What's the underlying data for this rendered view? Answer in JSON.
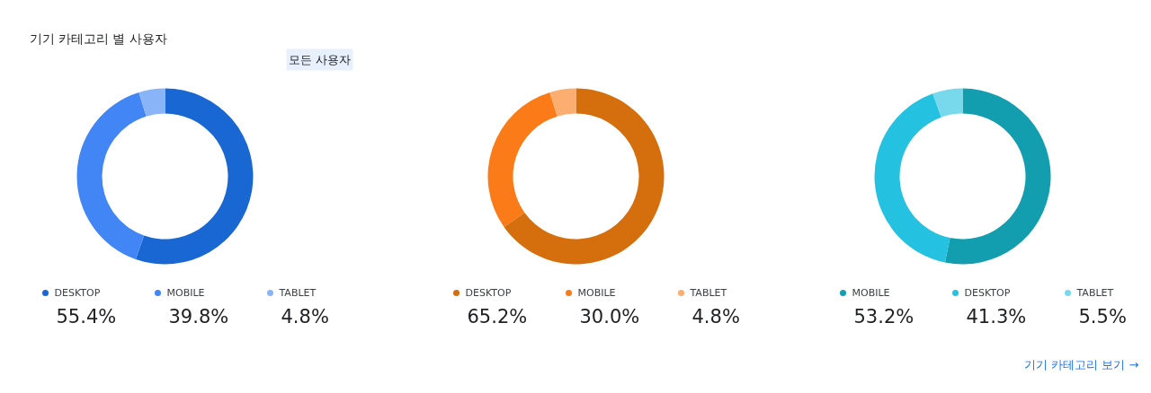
{
  "chart_data": [
    {
      "type": "donut",
      "title": "기기 카테고리 별 사용자",
      "subtitle": "모든 사용자",
      "categories": [
        "DESKTOP",
        "MOBILE",
        "TABLET"
      ],
      "values": [
        55.4,
        39.8,
        4.8
      ],
      "value_labels": [
        "55.4%",
        "39.8%",
        "4.8%"
      ],
      "colors": [
        "#1967d2",
        "#4285f4",
        "#8ab4f8"
      ],
      "legend": "bottom"
    },
    {
      "type": "donut",
      "categories": [
        "DESKTOP",
        "MOBILE",
        "TABLET"
      ],
      "values": [
        65.2,
        30.0,
        4.8
      ],
      "value_labels": [
        "65.2%",
        "30.0%",
        "4.8%"
      ],
      "colors": [
        "#d56e0c",
        "#fa7b17",
        "#fcad70"
      ],
      "legend": "bottom"
    },
    {
      "type": "donut",
      "categories": [
        "MOBILE",
        "DESKTOP",
        "TABLET"
      ],
      "values": [
        53.2,
        41.3,
        5.5
      ],
      "value_labels": [
        "53.2%",
        "41.3%",
        "5.5%"
      ],
      "colors": [
        "#129eaf",
        "#24c1e0",
        "#78d9ec"
      ],
      "legend": "bottom",
      "annotations": [
        "기기 카테고리 보기 →"
      ]
    }
  ]
}
